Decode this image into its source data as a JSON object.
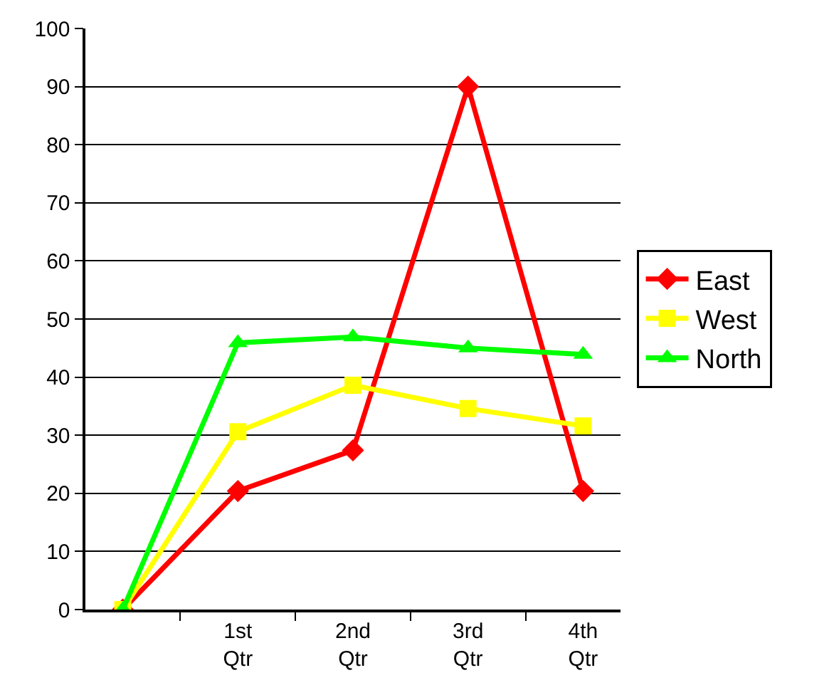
{
  "chart_data": {
    "type": "line",
    "categories": [
      null,
      "1st Qtr",
      "2nd Qtr",
      "3rd Qtr",
      "4th Qtr"
    ],
    "series": [
      {
        "name": "East",
        "color": "#ff0000",
        "marker": "diamond",
        "values": [
          0,
          20.4,
          27.4,
          90,
          20.4
        ]
      },
      {
        "name": "West",
        "color": "#ffff00",
        "marker": "square",
        "values": [
          0,
          30.6,
          38.6,
          34.6,
          31.6
        ]
      },
      {
        "name": "North",
        "color": "#00ff00",
        "marker": "triangle",
        "values": [
          0,
          45.9,
          46.9,
          45,
          43.9
        ]
      }
    ],
    "ylim": [
      0,
      100
    ],
    "yticks": [
      0,
      10,
      20,
      30,
      40,
      50,
      60,
      70,
      80,
      90,
      100
    ],
    "grid": "y",
    "legend": "right",
    "line_style": "solid"
  }
}
